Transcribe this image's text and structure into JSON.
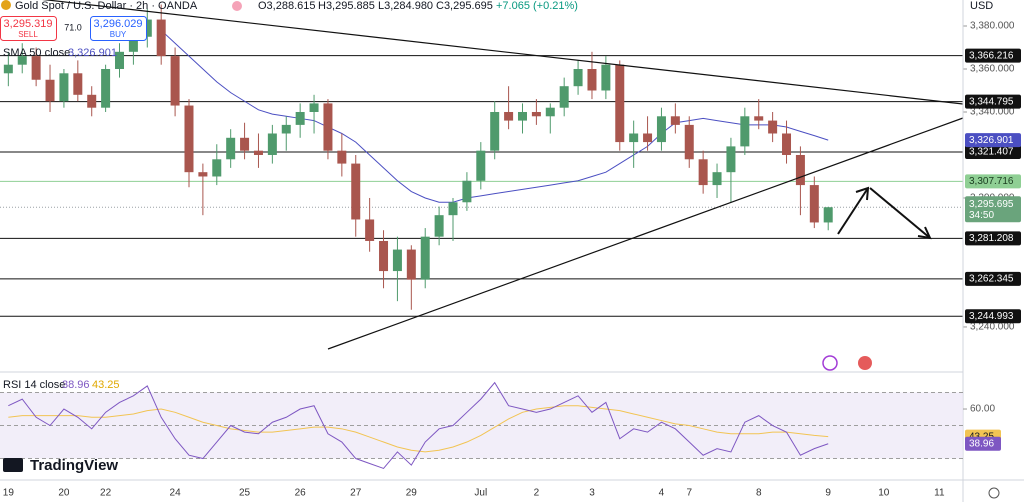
{
  "header": {
    "symbol": "Gold Spot / U.S. Dollar · 2h · OANDA",
    "ohlc": [
      "O3,288.615",
      "H3,295.885",
      "L3,284.980",
      "C3,295.695"
    ],
    "change": "+7.065 (+0.21%)",
    "currency": "USD"
  },
  "trade_panel": {
    "sell_price": "3,295.319",
    "sell": "SELL",
    "spread": "71.0",
    "buy_price": "3,296.029",
    "buy": "BUY"
  },
  "watermark": "TradingView",
  "chart_data": [
    {
      "type": "candlestick",
      "up_color": "#4f9a6c",
      "down_color": "#a9564e",
      "ylim": [
        3222.3,
        3392.1
      ],
      "xlim": [
        -0.6,
        68.7
      ],
      "yticks": [
        {
          "value": 3380,
          "label": "3,380.000"
        },
        {
          "value": 3360,
          "label": "3,360.000"
        },
        {
          "value": 3340,
          "label": "3,340.000"
        },
        {
          "value": 3300,
          "label": "3,300.000"
        },
        {
          "value": 3240,
          "label": "3,240.000"
        }
      ],
      "xticks": [
        {
          "value": 0,
          "label": "19"
        },
        {
          "value": 4,
          "label": "20"
        },
        {
          "value": 7,
          "label": "22"
        },
        {
          "value": 12,
          "label": "24"
        },
        {
          "value": 17,
          "label": "25"
        },
        {
          "value": 21,
          "label": "26"
        },
        {
          "value": 25,
          "label": "27"
        },
        {
          "value": 29,
          "label": "29"
        },
        {
          "value": 34,
          "label": "Jul"
        },
        {
          "value": 38,
          "label": "2"
        },
        {
          "value": 42,
          "label": "3"
        },
        {
          "value": 47,
          "label": "4"
        },
        {
          "value": 49,
          "label": "7"
        },
        {
          "value": 54,
          "label": "8"
        },
        {
          "value": 59,
          "label": "9"
        },
        {
          "value": 63,
          "label": "10"
        },
        {
          "value": 67,
          "label": "11"
        }
      ],
      "open": [
        3358,
        3362,
        3366,
        3355,
        3345,
        3358,
        3348,
        3342,
        3360,
        3368,
        3375,
        3383,
        3366,
        3343,
        3312,
        3310,
        3318,
        3328,
        3322,
        3320,
        3330,
        3334,
        3340,
        3344,
        3322,
        3316,
        3290,
        3280,
        3266,
        3276,
        3262,
        3282,
        3292,
        3298,
        3308,
        3322,
        3340,
        3336,
        3340,
        3338,
        3342,
        3352,
        3360,
        3350,
        3362,
        3326,
        3330,
        3326,
        3338,
        3334,
        3318,
        3306,
        3312,
        3324,
        3338,
        3336,
        3330,
        3320,
        3306,
        3288.615
      ],
      "high": [
        3368,
        3372,
        3370,
        3362,
        3360,
        3364,
        3352,
        3362,
        3372,
        3378,
        3388,
        3390,
        3370,
        3346,
        3316,
        3325,
        3332,
        3335,
        3330,
        3334,
        3338,
        3344,
        3348,
        3346,
        3330,
        3320,
        3300,
        3285,
        3282,
        3278,
        3286,
        3296,
        3300,
        3312,
        3326,
        3345,
        3352,
        3344,
        3346,
        3344,
        3356,
        3364,
        3368,
        3366,
        3364,
        3336,
        3338,
        3342,
        3344,
        3338,
        3322,
        3316,
        3328,
        3342,
        3346,
        3340,
        3336,
        3324,
        3310,
        3295.885
      ],
      "low": [
        3352,
        3358,
        3352,
        3340,
        3342,
        3345,
        3338,
        3340,
        3356,
        3362,
        3370,
        3362,
        3338,
        3305,
        3292,
        3306,
        3314,
        3318,
        3314,
        3316,
        3322,
        3328,
        3330,
        3318,
        3310,
        3282,
        3275,
        3258,
        3252,
        3248,
        3258,
        3278,
        3280,
        3294,
        3304,
        3318,
        3332,
        3330,
        3334,
        3330,
        3338,
        3348,
        3346,
        3346,
        3322,
        3314,
        3322,
        3322,
        3330,
        3314,
        3302,
        3300,
        3298,
        3320,
        3332,
        3326,
        3316,
        3292,
        3286,
        3284.98
      ],
      "close": [
        3362,
        3366,
        3355,
        3345,
        3358,
        3348,
        3342,
        3360,
        3368,
        3375,
        3383,
        3366,
        3343,
        3312,
        3310,
        3318,
        3328,
        3322,
        3320,
        3330,
        3334,
        3340,
        3344,
        3322,
        3316,
        3290,
        3280,
        3266,
        3276,
        3262,
        3282,
        3292,
        3298,
        3308,
        3322,
        3340,
        3336,
        3340,
        3338,
        3342,
        3352,
        3360,
        3350,
        3362,
        3326,
        3330,
        3326,
        3338,
        3334,
        3318,
        3306,
        3312,
        3324,
        3338,
        3336,
        3330,
        3320,
        3306,
        3288.615,
        3295.695
      ],
      "last_price_label": "3,295.695",
      "countdown": "34:50",
      "sma": {
        "name": "SMA 50 close",
        "color": "#4b4fc2",
        "value_label": "3,326.901",
        "values": [
          null,
          null,
          null,
          null,
          null,
          null,
          null,
          null,
          null,
          null,
          null,
          3378,
          3372,
          3366,
          3360,
          3354,
          3349,
          3345,
          3341,
          3339,
          3338,
          3337,
          3336,
          3333,
          3330,
          3326,
          3320,
          3314,
          3308,
          3303,
          3300,
          3298,
          3298,
          3300,
          3301,
          3302,
          3303,
          3304,
          3305,
          3306,
          3307,
          3308,
          3310,
          3312,
          3316,
          3320,
          3324,
          3330,
          3335,
          3336,
          3337,
          3336,
          3335,
          3334,
          3334,
          3334,
          3333,
          3331,
          3329,
          3326.901
        ]
      },
      "levels": [
        {
          "value": 3366.216,
          "label": "3,366.216",
          "color": "#111111"
        },
        {
          "value": 3344.795,
          "label": "3,344.795",
          "color": "#111111"
        },
        {
          "value": 3321.407,
          "label": "3,321.407",
          "color": "#111111"
        },
        {
          "value": 3307.716,
          "label": "3,307.716",
          "color": "#8fcf94"
        },
        {
          "value": 3281.208,
          "label": "3,281.208",
          "color": "#111111"
        },
        {
          "value": 3262.345,
          "label": "3,262.345",
          "color": "#111111"
        },
        {
          "value": 3244.993,
          "label": "3,244.993",
          "color": "#111111"
        }
      ]
    },
    {
      "type": "line",
      "title": "RSI 14 close",
      "ylim": [
        18.2,
        78.8
      ],
      "yticks": [
        {
          "value": 60,
          "label": "60.00"
        }
      ],
      "band_levels": [
        70,
        50,
        30
      ],
      "series": [
        {
          "color": "#7e57c2",
          "values": [
            62,
            66,
            55,
            50,
            60,
            55,
            48,
            58,
            64,
            68,
            74,
            55,
            42,
            32,
            30,
            40,
            50,
            46,
            45,
            52,
            55,
            60,
            62,
            45,
            40,
            30,
            27,
            24,
            34,
            26,
            40,
            48,
            50,
            58,
            66,
            76,
            62,
            60,
            58,
            60,
            64,
            68,
            58,
            64,
            42,
            48,
            46,
            52,
            48,
            40,
            32,
            36,
            34,
            52,
            56,
            50,
            46,
            32,
            36,
            38.96
          ]
        },
        {
          "color": "#f2c453",
          "values": [
            55,
            56,
            56,
            56,
            56,
            56,
            55,
            55,
            56,
            57,
            59,
            60,
            58,
            55,
            52,
            50,
            48,
            47,
            46,
            46,
            47,
            48,
            49,
            49,
            48,
            46,
            43,
            40,
            37,
            35,
            34,
            35,
            37,
            40,
            44,
            49,
            54,
            58,
            60,
            61,
            62,
            62,
            61,
            60,
            59,
            57,
            55,
            53,
            51,
            50,
            48,
            46,
            45,
            45,
            45,
            46,
            46,
            45,
            44,
            43.25
          ]
        }
      ]
    }
  ]
}
